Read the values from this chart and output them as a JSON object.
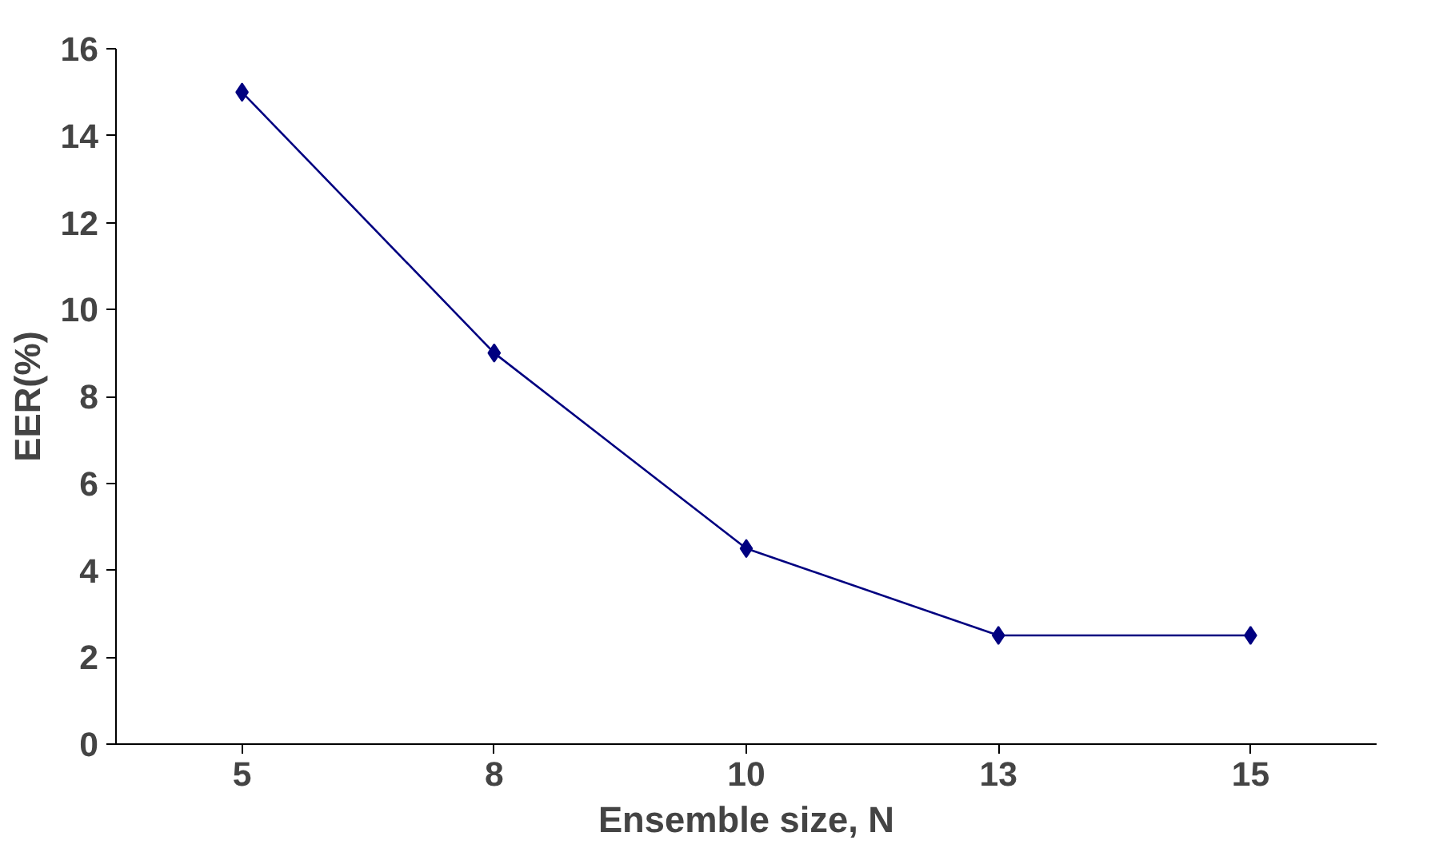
{
  "chart_data": {
    "type": "line",
    "xlabel": "Ensemble size, N",
    "ylabel": "EER(%)",
    "categories": [
      "5",
      "8",
      "10",
      "13",
      "15"
    ],
    "series": [
      {
        "color": "#000080",
        "values": [
          15,
          9,
          4.5,
          2.5,
          2.5
        ]
      }
    ],
    "ylim": [
      0,
      16
    ],
    "yticks": [
      0,
      2,
      4,
      6,
      8,
      10,
      12,
      14,
      16
    ],
    "grid": false,
    "marker": "diamond",
    "line_style": "solid"
  }
}
